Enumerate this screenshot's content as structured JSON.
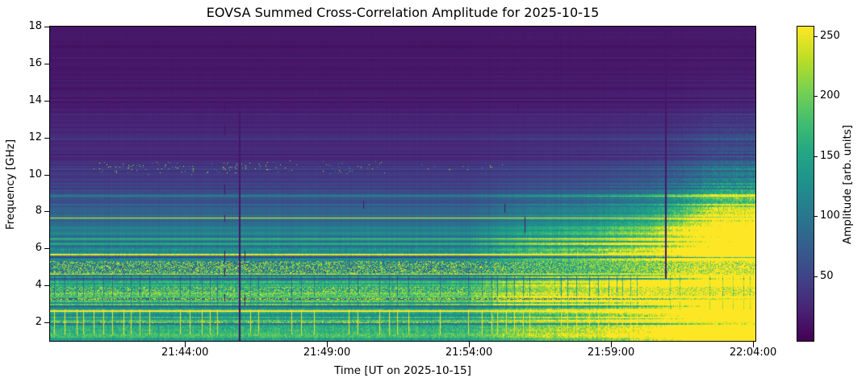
{
  "chart_data": {
    "type": "heatmap",
    "title": "EOVSA Summed Cross-Correlation Amplitude for 2025-10-15",
    "xlabel": "Time [UT on 2025-10-15]",
    "ylabel": "Frequency [GHz]",
    "colorbar_label": "Amplitude [arb. units]",
    "colormap": "viridis",
    "x_range": [
      "21:39:15",
      "22:04:05"
    ],
    "x_ticks": [
      "21:44:00",
      "21:49:00",
      "21:54:00",
      "21:59:00",
      "22:04:00"
    ],
    "y_range_ghz": [
      1.0,
      18.0
    ],
    "y_ticks_ghz": [
      2,
      4,
      6,
      8,
      10,
      12,
      14,
      16,
      18
    ],
    "amp_range": [
      -4,
      258
    ],
    "colorbar_ticks": [
      50,
      100,
      150,
      200,
      250
    ],
    "background_spectrum": [
      [
        18,
        11
      ],
      [
        16.5,
        12
      ],
      [
        15,
        14
      ],
      [
        14,
        16
      ],
      [
        13,
        20
      ],
      [
        12.3,
        24
      ],
      [
        12,
        27
      ],
      [
        11.5,
        24
      ],
      [
        11,
        26
      ],
      [
        10.5,
        31
      ],
      [
        10,
        35
      ],
      [
        9.6,
        42
      ],
      [
        9.2,
        52
      ],
      [
        8.8,
        62
      ],
      [
        8.4,
        70
      ],
      [
        8,
        78
      ],
      [
        7.6,
        86
      ],
      [
        7.2,
        92
      ],
      [
        6.8,
        96
      ],
      [
        6.4,
        100
      ],
      [
        6,
        108
      ],
      [
        5.8,
        115
      ],
      [
        5.6,
        135
      ],
      [
        5.45,
        120
      ],
      [
        5.3,
        110
      ],
      [
        5.1,
        115
      ],
      [
        4.9,
        120
      ],
      [
        4.7,
        130
      ],
      [
        4.55,
        145
      ],
      [
        4.3,
        148
      ],
      [
        4.1,
        150
      ],
      [
        3.9,
        155
      ],
      [
        3.7,
        160
      ],
      [
        3.5,
        165
      ],
      [
        3.3,
        160
      ],
      [
        3.13,
        185
      ],
      [
        3,
        200
      ],
      [
        2.92,
        195
      ],
      [
        2.8,
        165
      ],
      [
        2.65,
        155
      ],
      [
        2.5,
        150
      ],
      [
        2.35,
        148
      ],
      [
        2.2,
        150
      ],
      [
        2.05,
        155
      ],
      [
        1.9,
        158
      ],
      [
        1.75,
        152
      ],
      [
        1.6,
        156
      ],
      [
        1.45,
        150
      ],
      [
        1.3,
        148
      ],
      [
        1.15,
        142
      ],
      [
        1,
        140
      ]
    ],
    "horizontal_lines": [
      {
        "f": 7.68,
        "amp": 255,
        "px": 1
      },
      {
        "f": 5.7,
        "amp": 250,
        "px": 2
      },
      {
        "f": 5.52,
        "amp": 40,
        "px": 1
      },
      {
        "f": 6.25,
        "amp": 150,
        "px": 1
      },
      {
        "f": 6.6,
        "amp": 132,
        "px": 1
      },
      {
        "f": 8.85,
        "amp": 118,
        "px": 1
      },
      {
        "f": 4.62,
        "amp": 200,
        "px": 1
      },
      {
        "f": 2.2,
        "amp": 110,
        "px": 1
      },
      {
        "f": 10.48,
        "amp": 50,
        "px": 1
      },
      {
        "f": 11.95,
        "amp": 40,
        "px": 2
      },
      {
        "f": 12.55,
        "amp": 14,
        "px": 1
      },
      {
        "f": 13.6,
        "amp": 12,
        "px": 1
      },
      {
        "f": 15.3,
        "amp": 16,
        "px": 1
      },
      {
        "f": 16.8,
        "amp": 15,
        "px": 1
      }
    ],
    "speckle_bands": [
      {
        "f_lo": 4.66,
        "f_hi": 5.31,
        "density": 0.42,
        "amp_lo": 165,
        "amp_hi": 255,
        "base": 95
      },
      {
        "f_lo": 4.58,
        "f_hi": 4.66,
        "density": 0.5,
        "amp_lo": 200,
        "amp_hi": 255
      },
      {
        "f_lo": 3.45,
        "f_hi": 3.92,
        "density": 0.38,
        "amp_lo": 185,
        "amp_hi": 255
      },
      {
        "f_lo": 3.22,
        "f_hi": 3.31,
        "density": 0.42,
        "amp_lo": 215,
        "amp_hi": 255,
        "base": 70
      },
      {
        "f_lo": 1.97,
        "f_hi": 2.04,
        "density": 0.35,
        "amp_lo": 225,
        "amp_hi": 255
      }
    ],
    "rfi_speckle_clusters_10ghz": {
      "f_lo": 10.0,
      "f_hi": 10.75,
      "center": 10.38,
      "halfwidth": 0.4,
      "density": 0.055,
      "amp_lo": 120,
      "amp_hi": 255,
      "windows": [
        [
          "21:40:46",
          "21:44:19",
          1.0
        ],
        [
          "21:44:44",
          "21:48:00",
          1.0
        ],
        [
          "21:48:43",
          "21:51:08",
          0.85
        ],
        [
          "21:52:16",
          "21:55:40",
          0.3
        ]
      ]
    },
    "calibration_stripes": {
      "f_lo": 1.35,
      "f_hi": 2.72,
      "amp": 248,
      "shadow": [
        [
          3.4,
          4.55,
          0.6
        ],
        [
          2.72,
          3.2,
          0.8
        ]
      ],
      "seed": 11,
      "gap_min": 7,
      "gap_max": 17,
      "break_chance": 0.16,
      "break_min": 26,
      "break_max": 46
    },
    "dropout_lines": [
      {
        "t": "21:45:24",
        "amp": 10,
        "w": 1,
        "segs": [
          [
            16.7,
            17.2
          ],
          [
            13.45,
            13.9
          ],
          [
            12.2,
            12.7
          ],
          [
            9.0,
            9.45
          ],
          [
            7.5,
            7.8
          ],
          [
            5.35,
            5.85
          ],
          [
            4.55,
            4.9
          ],
          [
            3.2,
            3.5
          ]
        ]
      },
      {
        "t": "21:45:54",
        "amp": 12,
        "w": 2,
        "segs": [
          [
            1.0,
            13.3
          ]
        ]
      },
      {
        "t": "21:46:06",
        "amp": 12,
        "w": 1,
        "segs": [
          [
            5.35,
            5.85
          ],
          [
            3.0,
            3.45
          ]
        ]
      },
      {
        "t": "21:50:17",
        "amp": 12,
        "w": 1,
        "segs": [
          [
            8.2,
            8.55
          ]
        ]
      },
      {
        "t": "21:55:15",
        "amp": 12,
        "w": 1,
        "segs": [
          [
            8.0,
            8.4
          ]
        ]
      },
      {
        "t": "21:55:42",
        "amp": 12,
        "w": 1,
        "segs": [
          [
            13.4,
            13.9
          ]
        ]
      },
      {
        "t": "21:55:58",
        "amp": 12,
        "w": 1,
        "segs": [
          [
            6.9,
            7.67
          ]
        ]
      },
      {
        "t": "22:00:54",
        "amp": 12,
        "w": 2,
        "segs": [
          [
            4.4,
            17.8
          ]
        ]
      }
    ],
    "burst": {
      "gain": 3.2,
      "ramp": [
        [
          "21:39:15",
          0.0
        ],
        [
          "21:54:00",
          0.02
        ],
        [
          "21:56:00",
          0.14
        ],
        [
          "21:58:30",
          0.22
        ],
        [
          "22:00:30",
          0.38
        ],
        [
          "22:01:30",
          0.6
        ],
        [
          "22:02:30",
          0.9
        ],
        [
          "22:03:10",
          1.0
        ],
        [
          "22:04:05",
          1.05
        ]
      ],
      "freq_response": [
        [
          1.0,
          0.55
        ],
        [
          1.8,
          0.6
        ],
        [
          2.5,
          0.8
        ],
        [
          3.2,
          1.0
        ],
        [
          5.5,
          1.0
        ],
        [
          7.0,
          0.8
        ],
        [
          9.5,
          0.55
        ],
        [
          12.0,
          0.3
        ],
        [
          14.0,
          0.13
        ],
        [
          16.0,
          0.05
        ],
        [
          18.0,
          0.03
        ]
      ]
    },
    "noise": {
      "row_var": 0.45,
      "bright_row_chance": 0.055,
      "dark_row_chance": 0.055,
      "col_var": 0.1
    }
  }
}
